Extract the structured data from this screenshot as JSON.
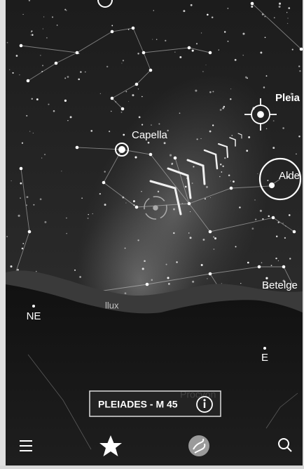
{
  "sky_labels": {
    "capella": "Capella",
    "pleiades": "Pleia",
    "aldebaran": "Alde",
    "betelgeuse": "Betelge",
    "pollux": "llux",
    "procyon": "Procyon"
  },
  "compass": {
    "ne": "NE",
    "e": "E"
  },
  "selection": {
    "label": "PLEIADES - M 45"
  }
}
